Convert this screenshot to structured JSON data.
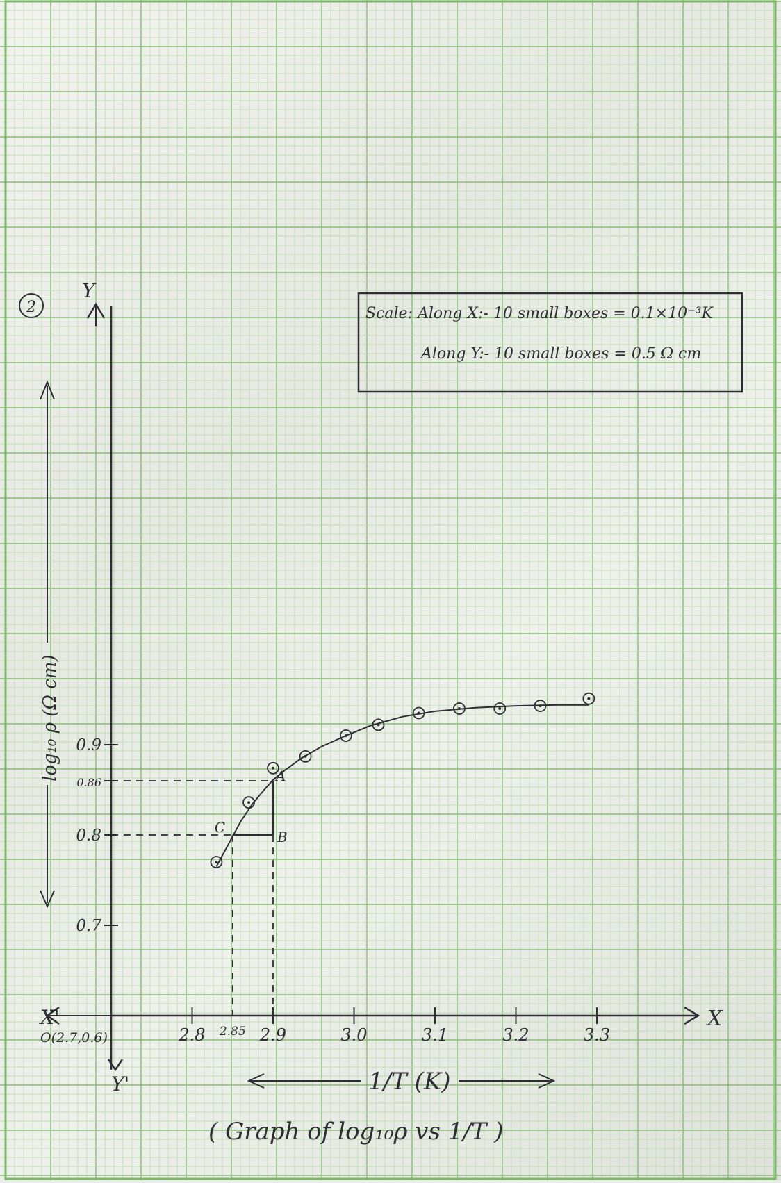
{
  "sheet": {
    "figure_number": "2",
    "scale_box": {
      "line1": "Scale: Along X:- 10 small boxes = 0.1×10⁻³K",
      "line2": "Along Y:- 10 small boxes = 0.5 Ω cm"
    },
    "caption": "( Graph of log₁₀ρ vs 1/T )",
    "x_axis_arrow_label": "1/T (K)",
    "y_axis_arrow_label": "log₁₀ ρ (Ω cm)"
  },
  "chart_data": {
    "type": "scatter",
    "title": "",
    "xlabel": "1/T (K)",
    "ylabel": "log₁₀ ρ (Ω cm)",
    "origin_label": "O(2.7,0.6)",
    "x_axis_letters": {
      "pos": "X",
      "neg": "X'"
    },
    "y_axis_letters": {
      "pos": "Y",
      "neg": "Y'"
    },
    "xlim": [
      2.7,
      3.38
    ],
    "ylim": [
      0.6,
      1.0
    ],
    "grid": true,
    "x_ticks": [
      {
        "value": 2.8,
        "label": "2.8"
      },
      {
        "value": 2.85,
        "label": "2.85"
      },
      {
        "value": 2.9,
        "label": "2.9"
      },
      {
        "value": 3.0,
        "label": "3.0"
      },
      {
        "value": 3.1,
        "label": "3.1"
      },
      {
        "value": 3.2,
        "label": "3.2"
      },
      {
        "value": 3.3,
        "label": "3.3"
      }
    ],
    "y_ticks": [
      {
        "value": 0.7,
        "label": "0.7"
      },
      {
        "value": 0.8,
        "label": "0.8"
      },
      {
        "value": 0.86,
        "label": "0.86"
      },
      {
        "value": 0.9,
        "label": "0.9"
      }
    ],
    "series": [
      {
        "x": [
          2.83,
          2.87,
          2.9,
          2.94,
          2.99,
          3.03,
          3.08,
          3.13,
          3.18,
          3.23,
          3.29
        ],
        "y": [
          0.77,
          0.836,
          0.874,
          0.887,
          0.91,
          0.922,
          0.935,
          0.94,
          0.94,
          0.943,
          0.951
        ]
      }
    ],
    "curve": {
      "x": [
        2.83,
        2.845,
        2.86,
        2.875,
        2.89,
        2.9,
        2.915,
        2.935,
        2.96,
        2.99,
        3.02,
        3.06,
        3.1,
        3.15,
        3.2,
        3.25,
        3.29
      ],
      "y": [
        0.765,
        0.79,
        0.815,
        0.835,
        0.851,
        0.861,
        0.872,
        0.885,
        0.898,
        0.91,
        0.921,
        0.931,
        0.937,
        0.941,
        0.943,
        0.944,
        0.944
      ]
    },
    "construction_points": [
      {
        "label": "A",
        "x": 2.9,
        "y": 0.86
      },
      {
        "label": "B",
        "x": 2.9,
        "y": 0.8
      },
      {
        "label": "C",
        "x": 2.85,
        "y": 0.8
      }
    ]
  }
}
